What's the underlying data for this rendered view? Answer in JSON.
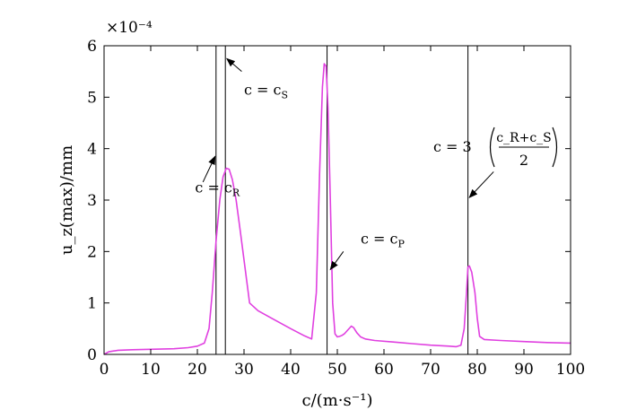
{
  "chart_data": {
    "type": "line",
    "title": "",
    "xlabel": "c/(m·s⁻¹)",
    "ylabel": "u_z(max)/mm",
    "y_multiplier": "×10⁻⁴",
    "xlim": [
      0,
      100
    ],
    "ylim": [
      0,
      6
    ],
    "x_ticks": [
      0,
      10,
      20,
      30,
      40,
      50,
      60,
      70,
      80,
      90,
      100
    ],
    "y_ticks": [
      0,
      1,
      2,
      3,
      4,
      5,
      6
    ],
    "grid": false,
    "series_color": "#e040e0",
    "series": [
      {
        "x": [
          0,
          1,
          3,
          6,
          10,
          15,
          18,
          20,
          21.5,
          22.5,
          23.2,
          24,
          24.8,
          25.5,
          26.2,
          26.8,
          27.5,
          28.3,
          29.2,
          30.2,
          31.2,
          33,
          36,
          40,
          43,
          44.5,
          45.5,
          46.2,
          46.8,
          47.2,
          47.6,
          48,
          48.5,
          49,
          49.5,
          50,
          50.5,
          51,
          51.5,
          52.2,
          53,
          53.5,
          54.2,
          55,
          56,
          58,
          62,
          66,
          70,
          74,
          75.5,
          76.5,
          77.2,
          77.7,
          78,
          78.3,
          78.8,
          79.5,
          80,
          80.5,
          81.5,
          85,
          90,
          95,
          100
        ],
        "y": [
          0,
          0.05,
          0.08,
          0.09,
          0.1,
          0.11,
          0.13,
          0.16,
          0.22,
          0.5,
          1.2,
          2.2,
          3.0,
          3.45,
          3.62,
          3.6,
          3.4,
          3.0,
          2.4,
          1.7,
          1.0,
          0.85,
          0.7,
          0.5,
          0.36,
          0.3,
          1.2,
          3.5,
          5.2,
          5.65,
          5.6,
          4.8,
          3.0,
          1.0,
          0.4,
          0.34,
          0.35,
          0.37,
          0.4,
          0.47,
          0.55,
          0.52,
          0.42,
          0.34,
          0.3,
          0.27,
          0.24,
          0.21,
          0.18,
          0.16,
          0.15,
          0.18,
          0.5,
          1.2,
          1.7,
          1.72,
          1.6,
          1.2,
          0.7,
          0.35,
          0.29,
          0.27,
          0.25,
          0.23,
          0.22
        ]
      }
    ],
    "vertical_lines": [
      24,
      26,
      47.8,
      78
    ],
    "annotations": [
      {
        "text": "c = c",
        "sub": "S",
        "text_x": 30,
        "text_y": 5.05,
        "arrow_from_x": 29.5,
        "arrow_from_y": 5.5,
        "arrow_to_x": 26.3,
        "arrow_to_y": 5.75
      },
      {
        "text": "c = c",
        "sub": "R",
        "text_x": 19.5,
        "text_y": 3.15,
        "arrow_from_x": 21.2,
        "arrow_from_y": 3.35,
        "arrow_to_x": 23.8,
        "arrow_to_y": 3.85
      },
      {
        "text": "c = c",
        "sub": "P",
        "text_x": 55,
        "text_y": 2.15,
        "arrow_from_x": 51.3,
        "arrow_from_y": 2.0,
        "arrow_to_x": 48.5,
        "arrow_to_y": 1.65
      }
    ],
    "formula_annotation": {
      "prefix": "c = 3",
      "numerator": "c_R+c_S",
      "denominator": "2",
      "arrow_from_x": 83.5,
      "arrow_from_y": 3.55,
      "arrow_to_x": 78.3,
      "arrow_to_y": 3.05
    }
  }
}
